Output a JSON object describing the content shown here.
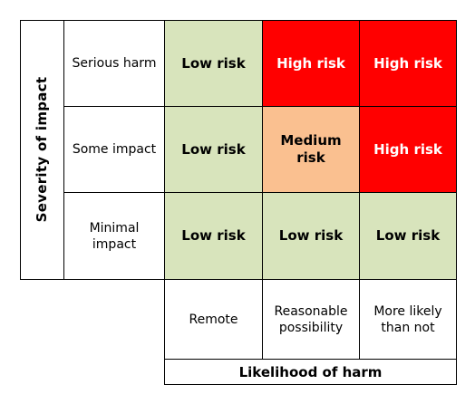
{
  "y_axis_title": "Severity of impact",
  "x_axis_title": "Likelihood of harm",
  "rows": [
    {
      "label": "Serious harm",
      "cells": [
        {
          "text": "Low risk",
          "level": "low"
        },
        {
          "text": "High risk",
          "level": "high"
        },
        {
          "text": "High risk",
          "level": "high"
        }
      ]
    },
    {
      "label": "Some impact",
      "cells": [
        {
          "text": "Low risk",
          "level": "low"
        },
        {
          "text": "Medium risk",
          "level": "medium"
        },
        {
          "text": "High risk",
          "level": "high"
        }
      ]
    },
    {
      "label": "Minimal impact",
      "cells": [
        {
          "text": "Low risk",
          "level": "low"
        },
        {
          "text": "Low risk",
          "level": "low"
        },
        {
          "text": "Low risk",
          "level": "low"
        }
      ]
    }
  ],
  "columns": [
    "Remote",
    "Reasonable possibility",
    "More likely than not"
  ],
  "colors": {
    "low": "#d8e4bc",
    "medium": "#fac090",
    "high": "#ff0000",
    "high_text": "#ffffff"
  }
}
